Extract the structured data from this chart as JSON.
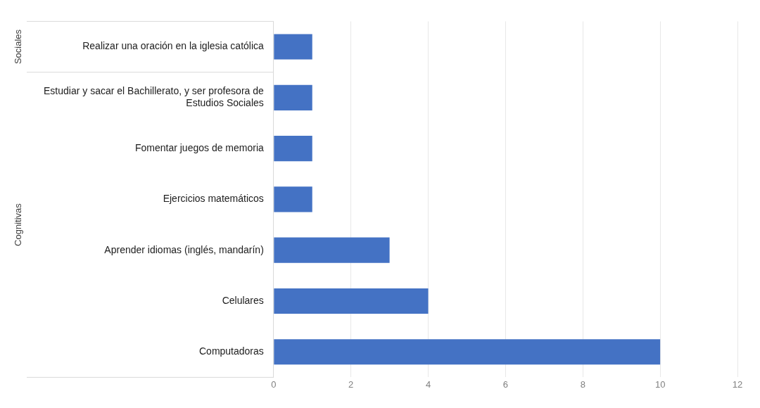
{
  "chart_data": {
    "type": "bar",
    "orientation": "horizontal",
    "categories": [
      "Realizar una oración en la iglesia católica",
      "Estudiar y sacar el Bachillerato, y ser profesora de Estudios Sociales",
      "Fomentar juegos de memoria",
      "Ejercicios matemáticos",
      "Aprender idiomas (inglés, mandarín)",
      "Celulares",
      "Computadoras"
    ],
    "values": [
      1,
      1,
      1,
      1,
      3,
      4,
      10
    ],
    "color": "#4472c4",
    "xlim": [
      0,
      12
    ],
    "xticks": [
      0,
      2,
      4,
      6,
      8,
      10,
      12
    ],
    "grid": "x",
    "annotations": [
      "Sociales",
      "Cognitivas"
    ]
  }
}
